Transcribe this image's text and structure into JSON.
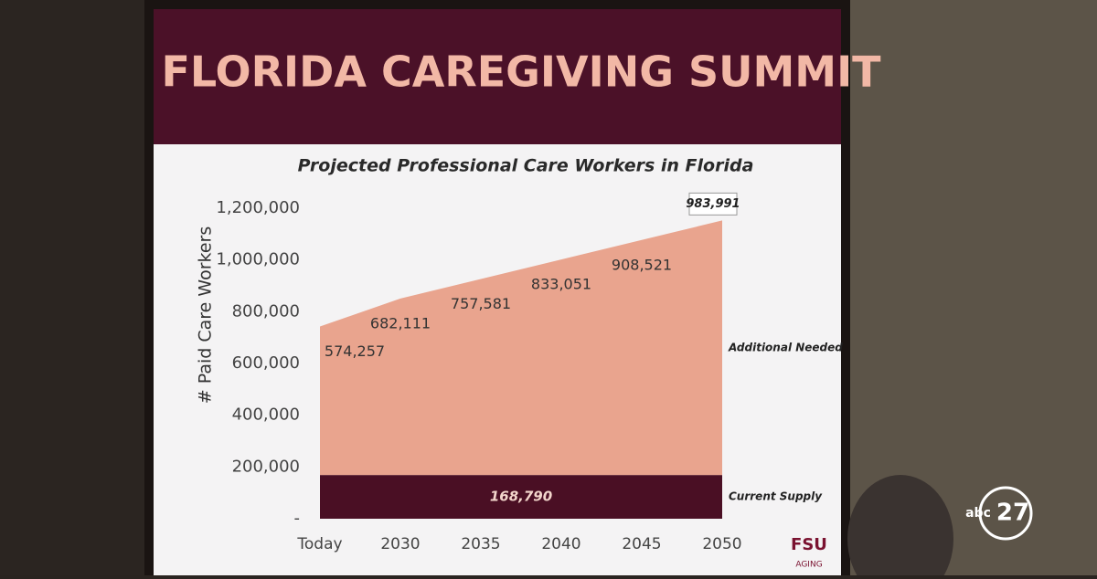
{
  "slide": {
    "title": "FLORIDA CAREGIVING SUMMIT"
  },
  "logos": {
    "org": "FSU",
    "org_sub": "AGING",
    "network": "abc",
    "channel": "27"
  },
  "chart_data": {
    "type": "stacked-area",
    "title": "Projected Professional Care Workers in Florida",
    "y_label": "# Paid Care Workers",
    "categories": [
      "Today",
      "2030",
      "2035",
      "2040",
      "2045",
      "2050"
    ],
    "series": [
      {
        "name": "Current Supply",
        "color": "#4a0f24",
        "values": [
          168790,
          168790,
          168790,
          168790,
          168790,
          168790
        ],
        "value_labels": [
          null,
          null,
          null,
          "168,790",
          null,
          null
        ]
      },
      {
        "name": "Additional Needed",
        "color": "#e9a48e",
        "values": [
          574257,
          682111,
          757581,
          833051,
          908521,
          983991
        ],
        "value_labels": [
          "574,257",
          "682,111",
          "757,581",
          "833,051",
          "908,521",
          "983,991"
        ]
      }
    ],
    "ylim": [
      0,
      1200000
    ],
    "yticks": [
      {
        "value": 0,
        "label": "-"
      },
      {
        "value": 200000,
        "label": "200,000"
      },
      {
        "value": 400000,
        "label": "400,000"
      },
      {
        "value": 600000,
        "label": "600,000"
      },
      {
        "value": 800000,
        "label": "800,000"
      },
      {
        "value": 1000000,
        "label": "1,000,000"
      },
      {
        "value": 1200000,
        "label": "1,200,000"
      }
    ],
    "grid": false
  }
}
